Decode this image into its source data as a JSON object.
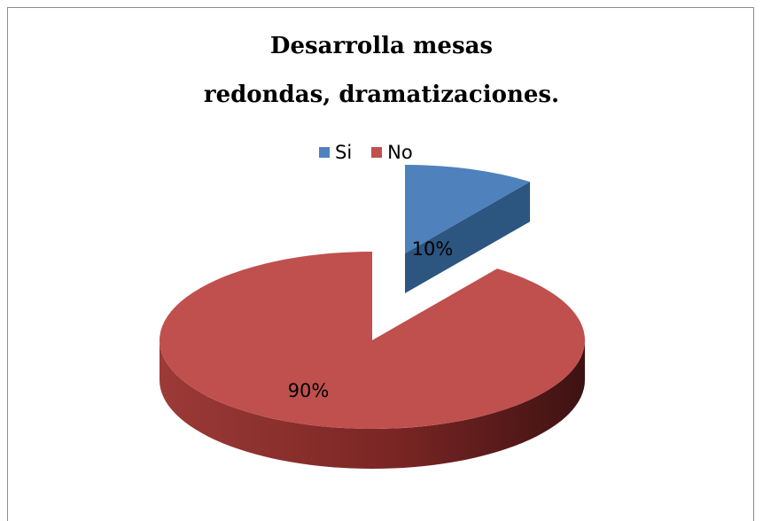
{
  "chart_data": {
    "type": "pie",
    "title_lines": [
      "Desarrolla mesas",
      "redondas, dramatizaciones."
    ],
    "legend_position": "top",
    "categories": [
      "Si",
      "No"
    ],
    "values": [
      10,
      90
    ],
    "data_labels": [
      "10%",
      "90%"
    ],
    "colors": [
      "#4f81bd",
      "#c0504d"
    ],
    "side_colors": [
      "#2c5580",
      "#8b2d2b"
    ],
    "style": "3d-exploded"
  }
}
